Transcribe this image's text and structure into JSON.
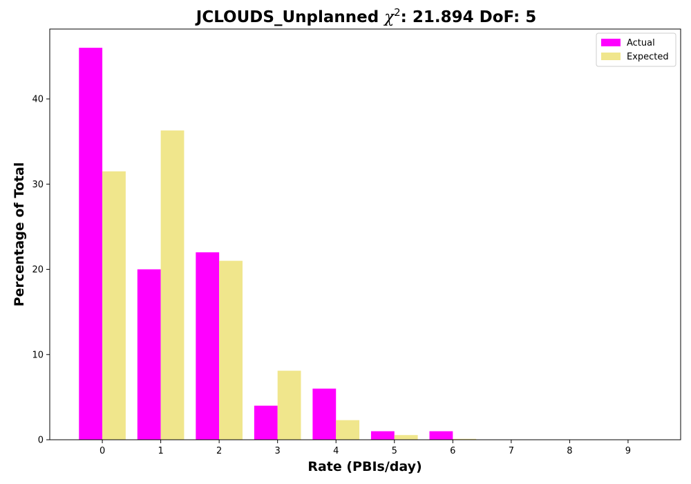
{
  "chart_data": {
    "type": "bar",
    "title_prefix": "JCLOUDS_Unplanned ",
    "title_chi": "χ",
    "title_sup": "2",
    "title_suffix": ": 21.894 DoF: 5",
    "xlabel": "Rate (PBIs/day)",
    "ylabel": "Percentage of Total",
    "categories": [
      "0",
      "1",
      "2",
      "3",
      "4",
      "5",
      "6",
      "7",
      "8",
      "9"
    ],
    "x": [
      0,
      1,
      2,
      3,
      4,
      5,
      6,
      7,
      8,
      9
    ],
    "series": [
      {
        "name": "Actual",
        "color": "#ff00ff",
        "values": [
          46,
          20,
          22,
          4,
          6,
          1,
          1,
          0,
          0,
          0
        ]
      },
      {
        "name": "Expected",
        "color": "#f0e68c",
        "values": [
          31.5,
          36.3,
          21.0,
          8.1,
          2.3,
          0.55,
          0.1,
          0.02,
          0,
          0
        ]
      }
    ],
    "xlim": [
      -0.9,
      9.9
    ],
    "ylim": [
      0,
      48.2
    ],
    "yticks": [
      0,
      10,
      20,
      30,
      40
    ],
    "legend_position": "top-right",
    "grid": false
  }
}
